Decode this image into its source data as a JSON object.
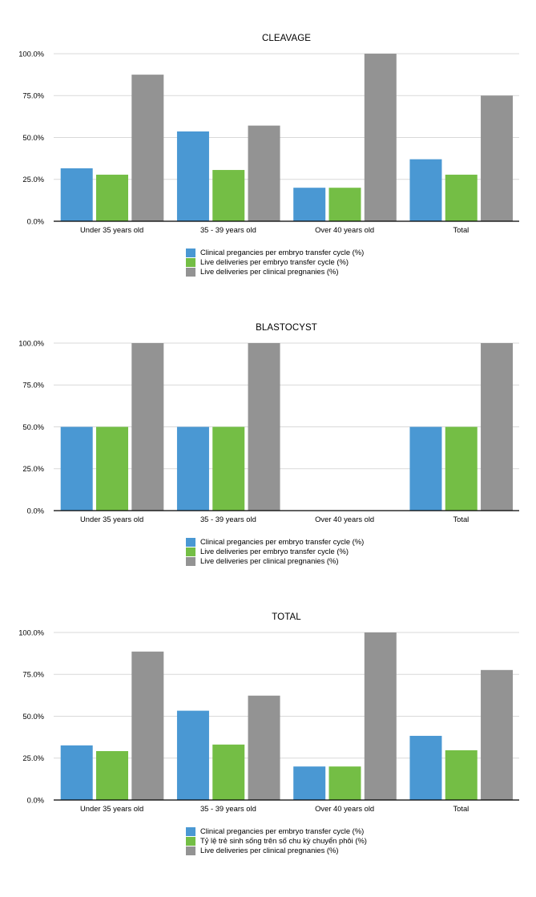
{
  "colors": {
    "series1": "#4A98D3",
    "series2": "#74BE45",
    "series3": "#939393",
    "gridline": "#D9D9D9",
    "axis": "#000000"
  },
  "chart_data": [
    {
      "type": "bar",
      "title": "CLEAVAGE",
      "xlabel": "",
      "ylabel": "",
      "ylim": [
        0,
        100
      ],
      "yticks": [
        "0.0%",
        "25.0%",
        "50.0%",
        "75.0%",
        "100.0%"
      ],
      "grid": true,
      "legend_position": "bottom",
      "categories": [
        "Under 35 years old",
        "35 - 39 years old",
        "Over 40 years old",
        "Total"
      ],
      "series": [
        {
          "name": "Clinical pregancies per embryo transfer cycle (%)",
          "values": [
            31.6,
            53.6,
            20.0,
            37.0
          ]
        },
        {
          "name": "Live deliveries per embryo transfer cycle (%)",
          "values": [
            27.8,
            30.6,
            20.0,
            27.8
          ]
        },
        {
          "name": "Live deliveries per clinical pregnanies (%)",
          "values": [
            87.5,
            57.1,
            100.0,
            75.0
          ]
        }
      ]
    },
    {
      "type": "bar",
      "title": "BLASTOCYST",
      "xlabel": "",
      "ylabel": "",
      "ylim": [
        0,
        100
      ],
      "yticks": [
        "0.0%",
        "25.0%",
        "50.0%",
        "75.0%",
        "100.0%"
      ],
      "grid": true,
      "legend_position": "bottom",
      "categories": [
        "Under 35 years old",
        "35 - 39 years old",
        "Over 40 years old",
        "Total"
      ],
      "series": [
        {
          "name": "Clinical pregancies per embryo transfer cycle (%)",
          "values": [
            50.0,
            50.0,
            0,
            50.0
          ]
        },
        {
          "name": "Live deliveries per embryo transfer cycle (%)",
          "values": [
            50.0,
            50.0,
            0,
            50.0
          ]
        },
        {
          "name": "Live deliveries per clinical pregnanies (%)",
          "values": [
            100.0,
            100.0,
            0,
            100.0
          ]
        }
      ]
    },
    {
      "type": "bar",
      "title": "TOTAL",
      "xlabel": "",
      "ylabel": "",
      "ylim": [
        0,
        100
      ],
      "yticks": [
        "0.0%",
        "25.0%",
        "50.0%",
        "75.0%",
        "100.0%"
      ],
      "grid": true,
      "legend_position": "bottom",
      "categories": [
        "Under 35 years old",
        "35 - 39 years old",
        "Over 40 years old",
        "Total"
      ],
      "series": [
        {
          "name": "Clinical pregancies per embryo transfer cycle (%)",
          "values": [
            32.6,
            53.3,
            20.0,
            38.3
          ]
        },
        {
          "name": "Tỷ lệ trẻ sinh sống trên số chu kỳ chuyển phôi (%)",
          "values": [
            29.2,
            33.1,
            20.0,
            29.7
          ]
        },
        {
          "name": "Live deliveries per clinical pregnanies (%)",
          "values": [
            88.6,
            62.3,
            100.0,
            77.6
          ]
        }
      ]
    }
  ]
}
